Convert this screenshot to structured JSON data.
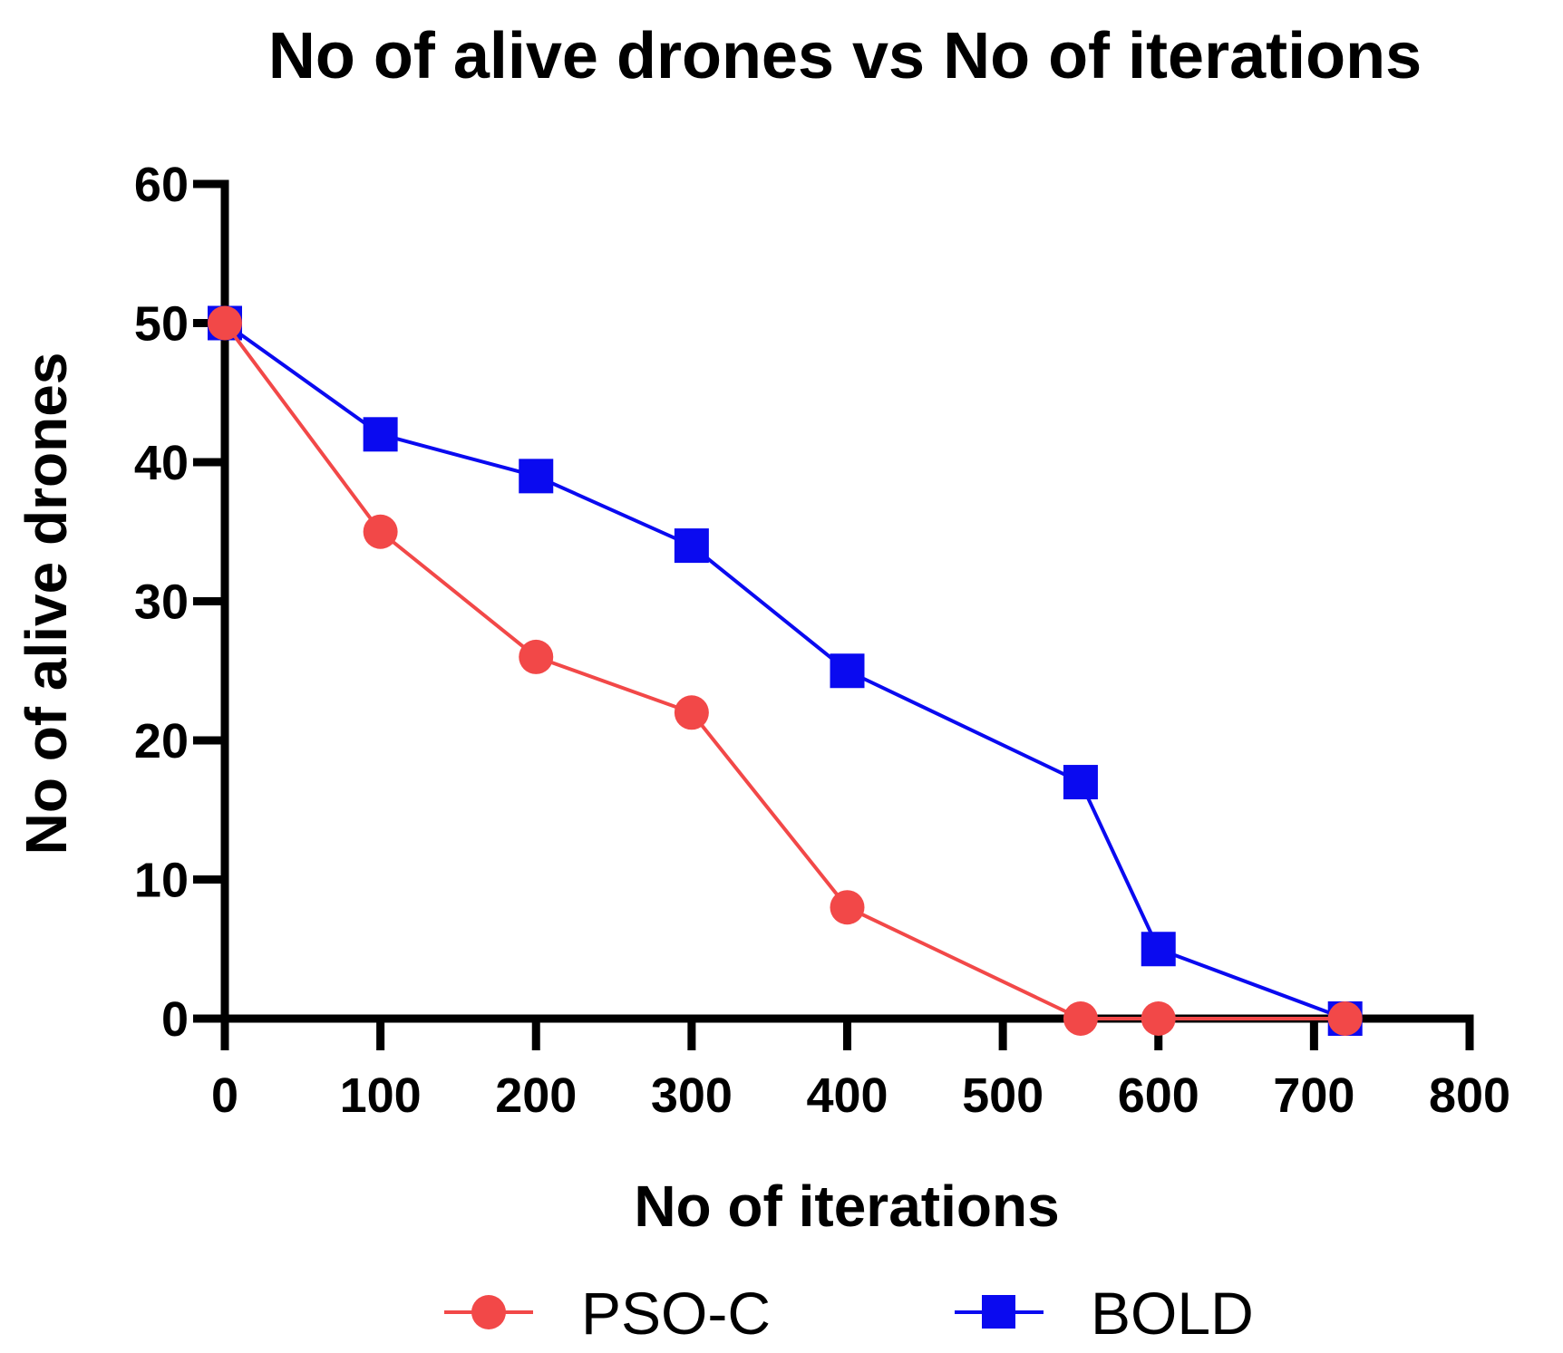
{
  "chart_data": {
    "type": "line",
    "title": "No of alive drones vs No of iterations",
    "xlabel": "No of iterations",
    "ylabel": "No of alive drones",
    "xlim": [
      0,
      800
    ],
    "ylim": [
      0,
      60
    ],
    "xticks": [
      0,
      100,
      200,
      300,
      400,
      500,
      600,
      700,
      800
    ],
    "yticks": [
      0,
      10,
      20,
      30,
      40,
      50,
      60
    ],
    "grid": false,
    "legend_position": "bottom-center",
    "series": [
      {
        "name": "PSO-C",
        "color": "#f24848",
        "marker": "circle",
        "x": [
          0,
          100,
          200,
          300,
          400,
          550,
          600,
          720
        ],
        "y": [
          50,
          35,
          26,
          22,
          8,
          0,
          0,
          0
        ]
      },
      {
        "name": "BOLD",
        "color": "#0a0af0",
        "marker": "square",
        "x": [
          0,
          100,
          200,
          300,
          400,
          550,
          600,
          720
        ],
        "y": [
          50,
          42,
          39,
          34,
          25,
          17,
          5,
          0
        ]
      }
    ]
  }
}
